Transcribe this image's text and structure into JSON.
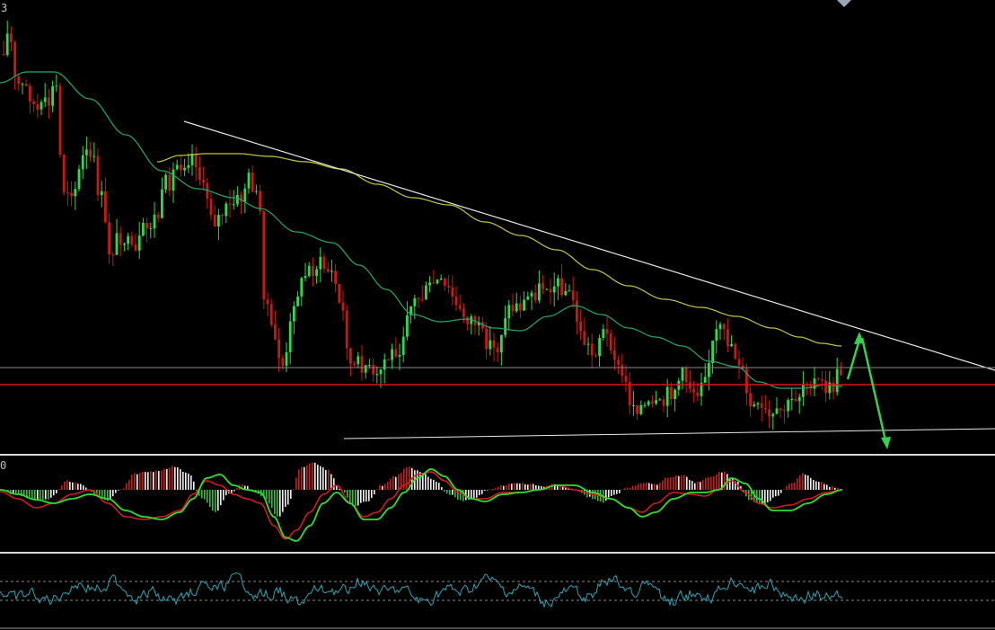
{
  "corner_labels": {
    "main_panel": "3",
    "macd_panel": "0"
  },
  "colors": {
    "background": "#000000",
    "bull_candle": "#22e04a",
    "bear_candle": "#d01515",
    "ma_fast": "#1fae6a",
    "ma_slow": "#c8c832",
    "trendline": "#e8e8e8",
    "support_line": "#d81818",
    "resistance_grey": "#8a8a8a",
    "arrow": "#32d24a",
    "macd_pos_up": "#d01a1a",
    "macd_pos_down": "#f0f0f0",
    "macd_neg_down": "#2dbd3a",
    "macd_neg_up": "#f0f0f0",
    "macd_signal_red": "#e01a1a",
    "macd_signal_green": "#2ce02c",
    "oscillator": "#27a7b7",
    "separator": "#d8d8d8",
    "dashed_level": "#8a8a8a"
  },
  "chart_data": [
    {
      "type": "candlestick",
      "panel": "price",
      "series": [
        {
          "name": "",
          "kind": "moving-average-fast"
        },
        {
          "name": "",
          "kind": "moving-average-slow"
        }
      ],
      "annotations": [
        "descending-trendline",
        "horizontal-support",
        "horizontal-level",
        "lower-trendline",
        "up-arrow",
        "down-arrow"
      ]
    },
    {
      "type": "histogram",
      "panel": "macd",
      "series": [
        {
          "name": "",
          "kind": "histogram"
        },
        {
          "name": "",
          "kind": "signal-red"
        },
        {
          "name": "",
          "kind": "signal-green"
        }
      ]
    },
    {
      "type": "line",
      "panel": "oscillator",
      "series": [
        {
          "name": "",
          "kind": "oscillator"
        }
      ],
      "levels": [
        "upper-dashed",
        "lower-dashed"
      ]
    }
  ]
}
